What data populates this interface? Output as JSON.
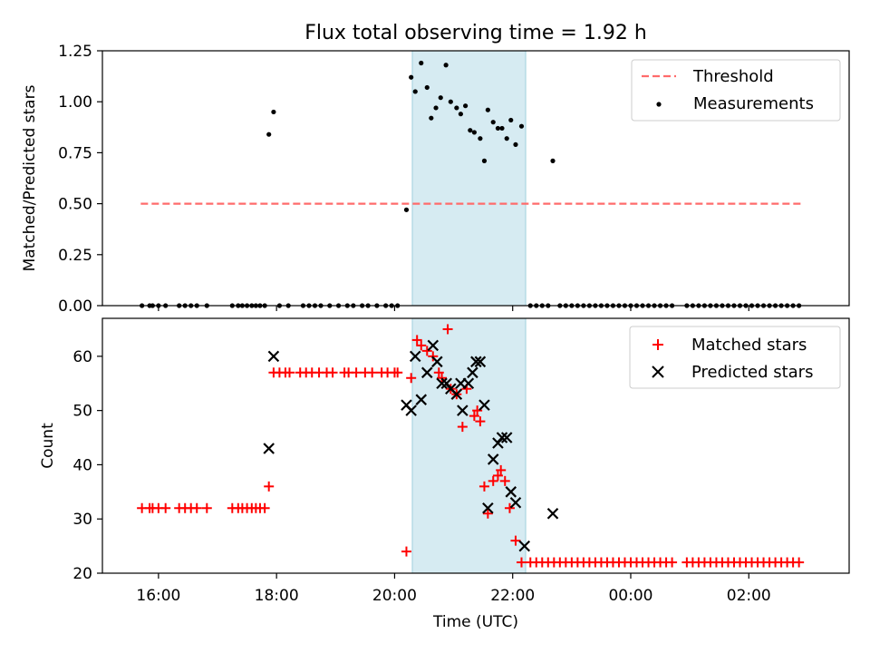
{
  "chart_data": [
    {
      "type": "scatter",
      "title": "Flux total observing time = 1.92 h",
      "xlabel": "",
      "ylabel": "Matched/Predicted stars",
      "xlim_hours": [
        15.05,
        27.7
      ],
      "ylim": [
        0,
        1.25
      ],
      "yticks": [
        "0.00",
        "0.25",
        "0.50",
        "0.75",
        "1.00",
        "1.25"
      ],
      "grid": false,
      "legend_position": "top-right",
      "shaded_interval_hours": [
        20.3,
        22.22
      ],
      "threshold": {
        "name": "Threshold",
        "value": 0.5,
        "x_range_hours": [
          15.7,
          26.9
        ],
        "color": "#ff6b6b"
      },
      "series": [
        {
          "name": "Measurements",
          "color": "#000000",
          "points": [
            [
              15.72,
              0
            ],
            [
              15.85,
              0
            ],
            [
              15.9,
              0
            ],
            [
              16.0,
              0
            ],
            [
              16.12,
              0
            ],
            [
              16.35,
              0
            ],
            [
              16.45,
              0
            ],
            [
              16.55,
              0
            ],
            [
              16.65,
              0
            ],
            [
              16.82,
              0
            ],
            [
              17.25,
              0
            ],
            [
              17.35,
              0
            ],
            [
              17.42,
              0
            ],
            [
              17.5,
              0
            ],
            [
              17.58,
              0
            ],
            [
              17.65,
              0
            ],
            [
              17.72,
              0
            ],
            [
              17.8,
              0
            ],
            [
              17.87,
              0.84
            ],
            [
              17.95,
              0.95
            ],
            [
              18.05,
              0
            ],
            [
              18.2,
              0
            ],
            [
              18.45,
              0
            ],
            [
              18.55,
              0
            ],
            [
              18.65,
              0
            ],
            [
              18.75,
              0
            ],
            [
              18.9,
              0
            ],
            [
              19.05,
              0
            ],
            [
              19.2,
              0
            ],
            [
              19.3,
              0
            ],
            [
              19.45,
              0
            ],
            [
              19.55,
              0
            ],
            [
              19.7,
              0
            ],
            [
              19.85,
              0
            ],
            [
              19.95,
              0
            ],
            [
              20.05,
              0
            ],
            [
              20.2,
              0.47
            ],
            [
              20.28,
              1.12
            ],
            [
              20.35,
              1.05
            ],
            [
              20.45,
              1.19
            ],
            [
              20.55,
              1.07
            ],
            [
              20.62,
              0.92
            ],
            [
              20.7,
              0.97
            ],
            [
              20.78,
              1.02
            ],
            [
              20.87,
              1.18
            ],
            [
              20.95,
              1.0
            ],
            [
              21.05,
              0.97
            ],
            [
              21.12,
              0.94
            ],
            [
              21.2,
              0.98
            ],
            [
              21.28,
              0.86
            ],
            [
              21.35,
              0.85
            ],
            [
              21.45,
              0.82
            ],
            [
              21.52,
              0.71
            ],
            [
              21.58,
              0.96
            ],
            [
              21.67,
              0.9
            ],
            [
              21.75,
              0.87
            ],
            [
              21.82,
              0.87
            ],
            [
              21.9,
              0.82
            ],
            [
              21.97,
              0.91
            ],
            [
              22.05,
              0.79
            ],
            [
              22.15,
              0.88
            ],
            [
              22.3,
              0
            ],
            [
              22.4,
              0
            ],
            [
              22.5,
              0
            ],
            [
              22.6,
              0
            ],
            [
              22.68,
              0.71
            ],
            [
              22.8,
              0
            ],
            [
              22.9,
              0
            ],
            [
              23.0,
              0
            ],
            [
              23.1,
              0
            ],
            [
              23.2,
              0
            ],
            [
              23.3,
              0
            ],
            [
              23.4,
              0
            ],
            [
              23.5,
              0
            ],
            [
              23.6,
              0
            ],
            [
              23.7,
              0
            ],
            [
              23.8,
              0
            ],
            [
              23.9,
              0
            ],
            [
              24.0,
              0
            ],
            [
              24.1,
              0
            ],
            [
              24.2,
              0
            ],
            [
              24.3,
              0
            ],
            [
              24.4,
              0
            ],
            [
              24.5,
              0
            ],
            [
              24.6,
              0
            ],
            [
              24.7,
              0
            ],
            [
              24.95,
              0
            ],
            [
              25.05,
              0
            ],
            [
              25.15,
              0
            ],
            [
              25.25,
              0
            ],
            [
              25.35,
              0
            ],
            [
              25.45,
              0
            ],
            [
              25.55,
              0
            ],
            [
              25.65,
              0
            ],
            [
              25.75,
              0
            ],
            [
              25.85,
              0
            ],
            [
              25.95,
              0
            ],
            [
              26.05,
              0
            ],
            [
              26.15,
              0
            ],
            [
              26.25,
              0
            ],
            [
              26.35,
              0
            ],
            [
              26.45,
              0
            ],
            [
              26.55,
              0
            ],
            [
              26.65,
              0
            ],
            [
              26.75,
              0
            ],
            [
              26.85,
              0
            ]
          ]
        }
      ]
    },
    {
      "type": "scatter",
      "title": "",
      "xlabel": "Time (UTC)",
      "ylabel": "Count",
      "xlim_hours": [
        15.05,
        27.7
      ],
      "ylim": [
        20,
        67
      ],
      "yticks": [
        "20",
        "30",
        "40",
        "50",
        "60"
      ],
      "xtick_hours": [
        16,
        18,
        20,
        22,
        24,
        26
      ],
      "xtick_labels": [
        "16:00",
        "18:00",
        "20:00",
        "22:00",
        "00:00",
        "02:00"
      ],
      "grid": false,
      "legend_position": "top-right",
      "shaded_interval_hours": [
        20.3,
        22.22
      ],
      "series": [
        {
          "name": "Matched stars",
          "marker": "+",
          "color": "#ff0000",
          "points": [
            [
              15.72,
              32
            ],
            [
              15.85,
              32
            ],
            [
              15.9,
              32
            ],
            [
              16.0,
              32
            ],
            [
              16.12,
              32
            ],
            [
              16.35,
              32
            ],
            [
              16.45,
              32
            ],
            [
              16.55,
              32
            ],
            [
              16.65,
              32
            ],
            [
              16.82,
              32
            ],
            [
              17.25,
              32
            ],
            [
              17.35,
              32
            ],
            [
              17.42,
              32
            ],
            [
              17.5,
              32
            ],
            [
              17.58,
              32
            ],
            [
              17.65,
              32
            ],
            [
              17.72,
              32
            ],
            [
              17.8,
              32
            ],
            [
              17.87,
              36
            ],
            [
              17.95,
              57
            ],
            [
              18.05,
              57
            ],
            [
              18.15,
              57
            ],
            [
              18.22,
              57
            ],
            [
              18.4,
              57
            ],
            [
              18.5,
              57
            ],
            [
              18.6,
              57
            ],
            [
              18.72,
              57
            ],
            [
              18.85,
              57
            ],
            [
              18.95,
              57
            ],
            [
              19.15,
              57
            ],
            [
              19.22,
              57
            ],
            [
              19.35,
              57
            ],
            [
              19.5,
              57
            ],
            [
              19.62,
              57
            ],
            [
              19.78,
              57
            ],
            [
              19.88,
              57
            ],
            [
              20.0,
              57
            ],
            [
              20.05,
              57
            ],
            [
              20.2,
              24
            ],
            [
              20.28,
              56
            ],
            [
              20.38,
              63
            ],
            [
              20.45,
              62
            ],
            [
              20.55,
              61
            ],
            [
              20.65,
              60
            ],
            [
              20.75,
              57
            ],
            [
              20.8,
              56
            ],
            [
              20.9,
              65
            ],
            [
              20.95,
              54
            ],
            [
              21.05,
              53
            ],
            [
              21.15,
              47
            ],
            [
              21.22,
              54
            ],
            [
              21.35,
              49
            ],
            [
              21.4,
              50
            ],
            [
              21.45,
              48
            ],
            [
              21.52,
              36
            ],
            [
              21.58,
              31
            ],
            [
              21.67,
              37
            ],
            [
              21.75,
              38
            ],
            [
              21.8,
              39
            ],
            [
              21.87,
              37
            ],
            [
              21.95,
              32
            ],
            [
              22.05,
              26
            ],
            [
              22.15,
              22
            ],
            [
              22.3,
              22
            ],
            [
              22.4,
              22
            ],
            [
              22.5,
              22
            ],
            [
              22.6,
              22
            ],
            [
              22.7,
              22
            ],
            [
              22.8,
              22
            ],
            [
              22.9,
              22
            ],
            [
              23.0,
              22
            ],
            [
              23.1,
              22
            ],
            [
              23.2,
              22
            ],
            [
              23.3,
              22
            ],
            [
              23.4,
              22
            ],
            [
              23.5,
              22
            ],
            [
              23.6,
              22
            ],
            [
              23.7,
              22
            ],
            [
              23.8,
              22
            ],
            [
              23.9,
              22
            ],
            [
              24.0,
              22
            ],
            [
              24.1,
              22
            ],
            [
              24.2,
              22
            ],
            [
              24.3,
              22
            ],
            [
              24.4,
              22
            ],
            [
              24.5,
              22
            ],
            [
              24.6,
              22
            ],
            [
              24.7,
              22
            ],
            [
              24.95,
              22
            ],
            [
              25.05,
              22
            ],
            [
              25.15,
              22
            ],
            [
              25.25,
              22
            ],
            [
              25.35,
              22
            ],
            [
              25.45,
              22
            ],
            [
              25.55,
              22
            ],
            [
              25.65,
              22
            ],
            [
              25.75,
              22
            ],
            [
              25.85,
              22
            ],
            [
              25.95,
              22
            ],
            [
              26.05,
              22
            ],
            [
              26.15,
              22
            ],
            [
              26.25,
              22
            ],
            [
              26.35,
              22
            ],
            [
              26.45,
              22
            ],
            [
              26.55,
              22
            ],
            [
              26.65,
              22
            ],
            [
              26.75,
              22
            ],
            [
              26.85,
              22
            ]
          ]
        },
        {
          "name": "Predicted stars",
          "marker": "x",
          "color": "#000000",
          "points": [
            [
              17.87,
              43
            ],
            [
              17.95,
              60
            ],
            [
              20.2,
              51
            ],
            [
              20.28,
              50
            ],
            [
              20.35,
              60
            ],
            [
              20.45,
              52
            ],
            [
              20.55,
              57
            ],
            [
              20.65,
              62
            ],
            [
              20.72,
              59
            ],
            [
              20.8,
              55
            ],
            [
              20.88,
              55
            ],
            [
              20.95,
              54
            ],
            [
              21.05,
              53
            ],
            [
              21.12,
              55
            ],
            [
              21.15,
              50
            ],
            [
              21.25,
              55
            ],
            [
              21.32,
              57
            ],
            [
              21.38,
              59
            ],
            [
              21.45,
              59
            ],
            [
              21.52,
              51
            ],
            [
              21.58,
              32
            ],
            [
              21.67,
              41
            ],
            [
              21.75,
              44
            ],
            [
              21.82,
              45
            ],
            [
              21.9,
              45
            ],
            [
              21.97,
              35
            ],
            [
              22.05,
              33
            ],
            [
              22.2,
              25
            ],
            [
              22.68,
              31
            ]
          ]
        }
      ]
    }
  ]
}
